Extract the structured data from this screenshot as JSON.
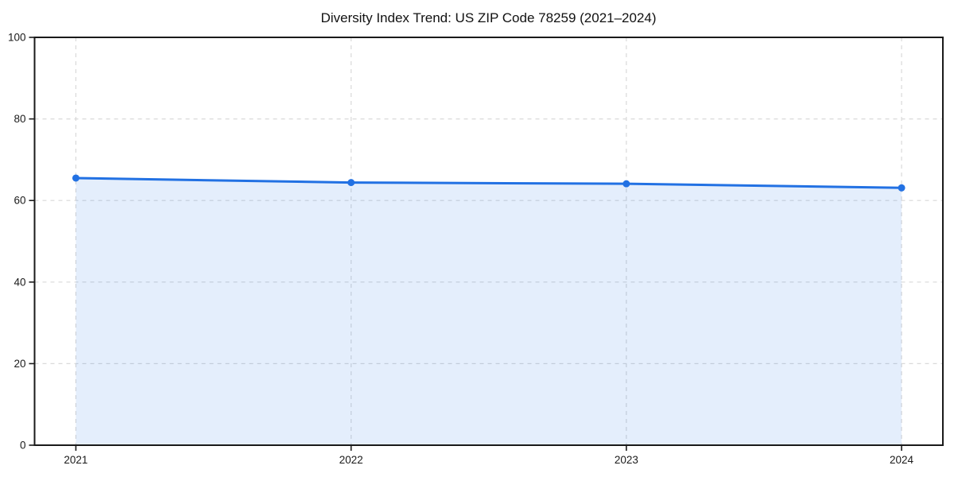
{
  "chart_data": {
    "type": "line",
    "title": "Diversity Index Trend: US ZIP Code 78259 (2021–2024)",
    "x": [
      2021,
      2022,
      2023,
      2024
    ],
    "xtick_labels": [
      "2021",
      "2022",
      "2023",
      "2024"
    ],
    "series": [
      {
        "name": "Diversity Index",
        "values": [
          65.5,
          64.4,
          64.1,
          63.1
        ]
      }
    ],
    "xlabel": "",
    "ylabel": "",
    "ylim": [
      0,
      100
    ],
    "yticks": [
      0,
      20,
      40,
      60,
      80,
      100
    ],
    "ytick_labels": [
      "0",
      "20",
      "40",
      "60",
      "80",
      "100"
    ],
    "x_margin_fraction": 0.05,
    "grid": true,
    "grid_style": "dashed",
    "legend": "none",
    "marker": "circle",
    "area_fill": true,
    "colors": {
      "line": "#2271e3",
      "marker": "#2271e3",
      "area_fill": "rgba(34,113,227,0.12)",
      "grid": "#d9d9d9",
      "spine": "#1a1a1a",
      "text": "#1a1a1a",
      "background": "#ffffff"
    }
  }
}
